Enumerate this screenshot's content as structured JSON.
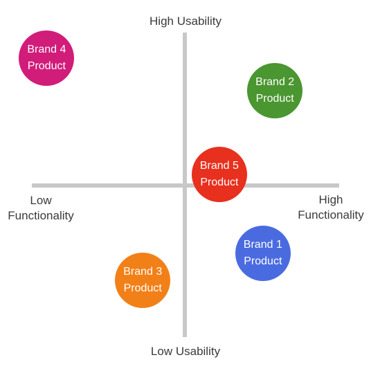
{
  "axes": {
    "top_label": "High Usability",
    "bottom_label": "Low Usability",
    "left_label_line1": "Low",
    "left_label_line2": "Functionality",
    "right_label_line1": "High",
    "right_label_line2": "Functionality",
    "axis_color": "#c8c8c8"
  },
  "products": [
    {
      "id": "brand-4",
      "line1": "Brand 4",
      "line2": "Product",
      "color": "#d11c7a",
      "functionality": -0.92,
      "usability": 0.9
    },
    {
      "id": "brand-2",
      "line1": "Brand 2",
      "line2": "Product",
      "color": "#4a9630",
      "functionality": 0.6,
      "usability": 0.67
    },
    {
      "id": "brand-5",
      "line1": "Brand 5",
      "line2": "Product",
      "color": "#e8301e",
      "functionality": 0.23,
      "usability": 0.08
    },
    {
      "id": "brand-1",
      "line1": "Brand 1",
      "line2": "Product",
      "color": "#4a6be0",
      "functionality": 0.52,
      "usability": -0.48
    },
    {
      "id": "brand-3",
      "line1": "Brand 3",
      "line2": "Product",
      "color": "#f28018",
      "functionality": -0.28,
      "usability": -0.67
    }
  ]
}
